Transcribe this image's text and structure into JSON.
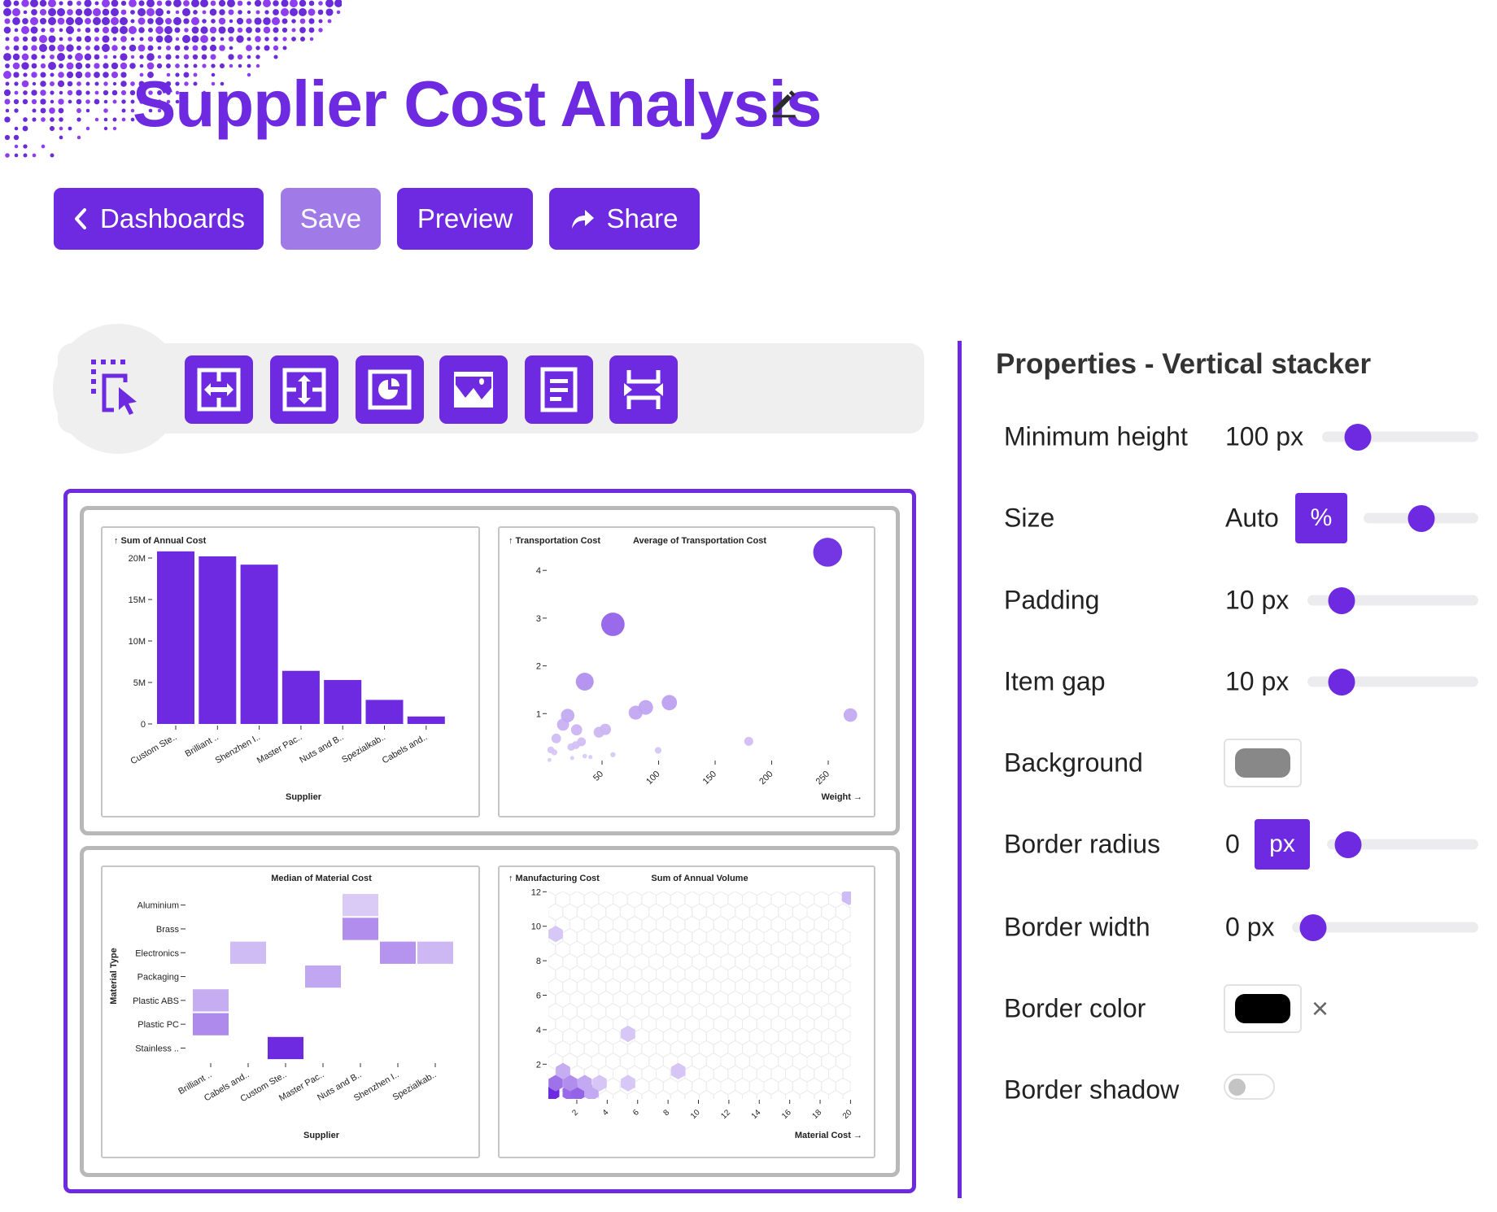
{
  "header": {
    "title": "Supplier Cost Analysis",
    "edit_icon": "pencil-icon",
    "buttons": [
      {
        "label": "Dashboards",
        "icon": "chevron-left-icon"
      },
      {
        "label": "Save"
      },
      {
        "label": "Preview"
      },
      {
        "label": "Share",
        "icon": "share-arrow-icon"
      }
    ]
  },
  "toolbar": {
    "tools": [
      "select-element-icon",
      "horizontal-stacker-icon",
      "vertical-stacker-icon",
      "chart-icon",
      "image-icon",
      "text-icon",
      "spacer-icon"
    ]
  },
  "colors": {
    "accent": "#6d2ae0",
    "accent_light": "#a07be8",
    "stack_border": "#b8b8b8"
  },
  "properties": {
    "title": "Properties - Vertical stacker",
    "rows": [
      {
        "label": "Minimum height",
        "value": "100 px",
        "slider_level": 0.13
      },
      {
        "label": "Size",
        "value": "Auto",
        "unit": "%",
        "slider_level": 0.5
      },
      {
        "label": "Padding",
        "value": "10 px",
        "slider_level": 0.1
      },
      {
        "label": "Item gap",
        "value": "10 px",
        "slider_level": 0.1
      },
      {
        "label": "Background",
        "color": "#888888"
      },
      {
        "label": "Border radius",
        "value": "0",
        "unit": "px",
        "slider_level": 0
      },
      {
        "label": "Border width",
        "value": "0 px",
        "slider_level": 0
      },
      {
        "label": "Border color",
        "color": "#000000",
        "clear": "×"
      },
      {
        "label": "Border shadow",
        "toggle": false
      }
    ]
  },
  "chart_data": [
    {
      "type": "bar",
      "title": "↑ Sum of Annual Cost",
      "xlabel": "Supplier",
      "categories": [
        "Custom Ste..",
        "Brilliant ..",
        "Shenzhen I..",
        "Master Pac..",
        "Nuts and B..",
        "Spezialkab..",
        "Cabels and.."
      ],
      "values": [
        20800000,
        20200000,
        19200000,
        6400000,
        5300000,
        2900000,
        900000
      ],
      "yticks": [
        "0",
        "5M",
        "10M",
        "15M",
        "20M"
      ],
      "ylim": [
        0,
        20000000
      ],
      "color": "#6d2ae0"
    },
    {
      "type": "scatter",
      "ylabel": "↑ Transportation Cost",
      "legend_title": "Average of Transportation Cost",
      "xlabel": "Weight →",
      "xticks": [
        "50",
        "100",
        "150",
        "200",
        "250"
      ],
      "yticks": [
        "1",
        "2",
        "3",
        "4"
      ],
      "points": [
        [
          249.5,
          4.38
        ],
        [
          59.6,
          2.87
        ],
        [
          34.7,
          1.67
        ],
        [
          109.5,
          1.23
        ],
        [
          88.6,
          1.13
        ],
        [
          79.7,
          1.02
        ],
        [
          269.6,
          0.97
        ],
        [
          19.6,
          0.96
        ],
        [
          15.5,
          0.77
        ],
        [
          27.5,
          0.66
        ],
        [
          52.9,
          0.67
        ],
        [
          47.3,
          0.61
        ],
        [
          9.5,
          0.48
        ],
        [
          31.8,
          0.41
        ],
        [
          26.8,
          0.34
        ],
        [
          22.7,
          0.3
        ],
        [
          179.7,
          0.42
        ],
        [
          99.6,
          0.23
        ],
        [
          4.7,
          0.24
        ],
        [
          7.8,
          0.19
        ],
        [
          59.6,
          0.14
        ],
        [
          34.7,
          0.11
        ],
        [
          39.7,
          0.09
        ],
        [
          23.6,
          0.07
        ],
        [
          3.5,
          0.03
        ]
      ]
    },
    {
      "type": "heatmap",
      "title": "Median of Material Cost",
      "xlabel": "Supplier",
      "ylabel": "Material Type",
      "x_categories": [
        "Brilliant ..",
        "Cabels and..",
        "Custom Ste..",
        "Master Pac..",
        "Nuts and B..",
        "Shenzhen I..",
        "Spezialkab.."
      ],
      "y_categories": [
        "Aluminium",
        "Brass",
        "Electronics",
        "Packaging",
        "Plastic ABS",
        "Plastic PC",
        "Stainless .."
      ],
      "cells": [
        {
          "x": "Nuts and B..",
          "y": "Aluminium",
          "level": 0.12
        },
        {
          "x": "Nuts and B..",
          "y": "Brass",
          "level": 0.45
        },
        {
          "x": "Cabels and..",
          "y": "Electronics",
          "level": 0.2
        },
        {
          "x": "Shenzhen I..",
          "y": "Electronics",
          "level": 0.42
        },
        {
          "x": "Spezialkab..",
          "y": "Electronics",
          "level": 0.22
        },
        {
          "x": "Master Pac..",
          "y": "Packaging",
          "level": 0.32
        },
        {
          "x": "Brilliant ..",
          "y": "Plastic ABS",
          "level": 0.28
        },
        {
          "x": "Brilliant ..",
          "y": "Plastic PC",
          "level": 0.47
        },
        {
          "x": "Custom Ste..",
          "y": "Stainless ..",
          "level": 1.0
        }
      ]
    },
    {
      "type": "heatmap",
      "subtype": "hexbin",
      "ylabel": "↑ Manufacturing Cost",
      "legend_title": "Sum of Annual Volume",
      "xlabel": "Material Cost →",
      "xlim": [
        0,
        20
      ],
      "ylim": [
        0,
        12
      ],
      "xticks": [
        "2",
        "4",
        "6",
        "8",
        "10",
        "12",
        "14",
        "16",
        "18",
        "20"
      ],
      "yticks": [
        "2",
        "4",
        "6",
        "8",
        "10",
        "12"
      ],
      "bins": [
        {
          "x": 0.38,
          "y": 0.35,
          "level": 1.0
        },
        {
          "x": 1.54,
          "y": 0.35,
          "level": 0.65
        },
        {
          "x": 2.07,
          "y": 0.35,
          "level": 0.68
        },
        {
          "x": 2.96,
          "y": 0.35,
          "level": 0.3
        },
        {
          "x": 0.61,
          "y": 0.9,
          "level": 0.6
        },
        {
          "x": 1.57,
          "y": 0.9,
          "level": 0.45
        },
        {
          "x": 2.52,
          "y": 0.9,
          "level": 0.3
        },
        {
          "x": 3.5,
          "y": 0.9,
          "level": 0.15
        },
        {
          "x": 5.37,
          "y": 0.9,
          "level": 0.14
        },
        {
          "x": 1.09,
          "y": 1.6,
          "level": 0.28
        },
        {
          "x": 8.67,
          "y": 1.6,
          "level": 0.15
        },
        {
          "x": 5.37,
          "y": 3.76,
          "level": 0.14
        },
        {
          "x": 0.61,
          "y": 9.55,
          "level": 0.14
        },
        {
          "x": 19.9,
          "y": 11.7,
          "level": 0.2
        }
      ]
    }
  ]
}
